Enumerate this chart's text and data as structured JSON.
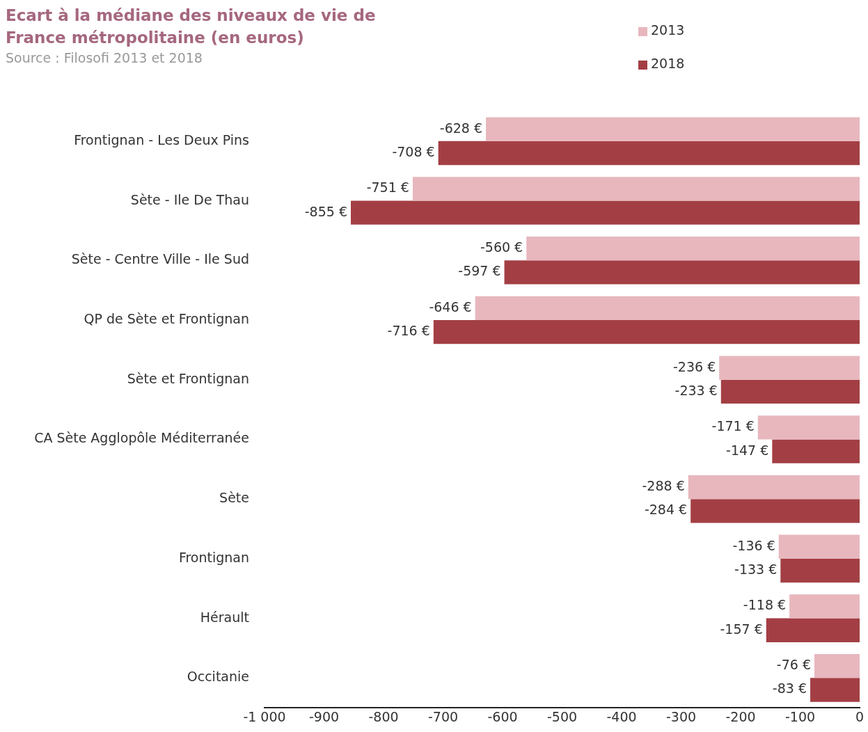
{
  "chart_data": {
    "type": "bar",
    "orientation": "horizontal",
    "title": "Ecart à la médiane des niveaux de vie de France métropolitaine (en euros)",
    "subtitle": "Source : Filosofi 2013 et 2018",
    "categories": [
      "Frontignan - Les Deux Pins",
      "Sète - Ile De Thau",
      "Sète - Centre Ville - Ile Sud",
      "QP de Sète et Frontignan",
      "Sète et Frontignan",
      "CA Sète Agglopôle Méditerranée",
      "Sète",
      "Frontignan",
      "Hérault",
      "Occitanie"
    ],
    "series": [
      {
        "name": "2013",
        "color": "#e8b7be",
        "values": [
          -628,
          -751,
          -560,
          -646,
          -236,
          -171,
          -288,
          -136,
          -118,
          -76
        ],
        "value_labels": [
          "-628 €",
          "-751 €",
          "-560 €",
          "-646 €",
          "-236 €",
          "-171 €",
          "-288 €",
          "-136 €",
          "-118 €",
          "-76 €"
        ]
      },
      {
        "name": "2018",
        "color": "#a33f44",
        "values": [
          -708,
          -855,
          -597,
          -716,
          -233,
          -147,
          -284,
          -133,
          -157,
          -83
        ],
        "value_labels": [
          "-708 €",
          "-855 €",
          "-597 €",
          "-716 €",
          "-233 €",
          "-147 €",
          "-284 €",
          "-133 €",
          "-157 €",
          "-83 €"
        ]
      }
    ],
    "xlim": [
      -1000,
      0
    ],
    "xticks": [
      {
        "value": -1000,
        "label": "-1 000"
      },
      -900,
      -800,
      -700,
      -600,
      -500,
      -400,
      -300,
      -200,
      -100,
      0
    ],
    "grid": false,
    "legend": "top right"
  }
}
